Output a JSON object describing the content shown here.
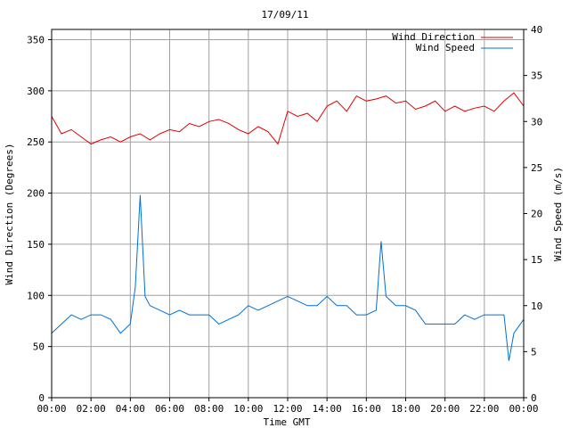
{
  "chart_data": {
    "type": "line",
    "title": "17/09/11",
    "xlabel": "Time GMT",
    "ylabel_left": "Wind Direction (Degrees)",
    "ylabel_right": "Wind Speed (m/s)",
    "x_ticks": [
      "00:00",
      "02:00",
      "04:00",
      "06:00",
      "08:00",
      "10:00",
      "12:00",
      "14:00",
      "16:00",
      "18:00",
      "20:00",
      "22:00",
      "00:00"
    ],
    "x_range_hours": [
      0,
      24
    ],
    "y_left_range": [
      0,
      360
    ],
    "y_left_ticks": [
      0,
      50,
      100,
      150,
      200,
      250,
      300,
      350
    ],
    "y_right_range": [
      0,
      40
    ],
    "y_right_ticks": [
      0,
      5,
      10,
      15,
      20,
      25,
      30,
      35,
      40
    ],
    "grid": true,
    "legend_position": "top-right",
    "colors": {
      "direction": "#e00000",
      "speed": "#0070d0"
    },
    "series": [
      {
        "name": "Wind Direction",
        "axis": "left",
        "x": [
          0,
          0.5,
          1,
          1.5,
          2,
          2.5,
          3,
          3.5,
          4,
          4.5,
          5,
          5.5,
          6,
          6.5,
          7,
          7.5,
          8,
          8.5,
          9,
          9.5,
          10,
          10.5,
          11,
          11.5,
          12,
          12.5,
          13,
          13.5,
          14,
          14.5,
          15,
          15.5,
          16,
          16.5,
          17,
          17.5,
          18,
          18.5,
          19,
          19.5,
          20,
          20.5,
          21,
          21.5,
          22,
          22.5,
          23,
          23.5,
          24
        ],
        "values": [
          275,
          258,
          262,
          255,
          248,
          252,
          255,
          250,
          255,
          258,
          252,
          258,
          262,
          260,
          268,
          265,
          270,
          272,
          268,
          262,
          258,
          265,
          260,
          248,
          280,
          275,
          278,
          270,
          285,
          290,
          280,
          295,
          290,
          292,
          295,
          288,
          290,
          282,
          285,
          290,
          280,
          285,
          280,
          283,
          285,
          280,
          290,
          298,
          285
        ]
      },
      {
        "name": "Wind Speed",
        "axis": "right",
        "x": [
          0,
          0.5,
          1,
          1.5,
          2,
          2.5,
          3,
          3.5,
          4,
          4.25,
          4.5,
          4.75,
          5,
          5.5,
          6,
          6.5,
          7,
          7.5,
          8,
          8.5,
          9,
          9.5,
          10,
          10.5,
          11,
          11.5,
          12,
          12.5,
          13,
          13.5,
          14,
          14.5,
          15,
          15.5,
          16,
          16.5,
          16.75,
          17,
          17.5,
          18,
          18.5,
          19,
          19.5,
          20,
          20.5,
          21,
          21.5,
          22,
          22.5,
          23,
          23.25,
          23.5,
          24
        ],
        "values": [
          7,
          8,
          9,
          8.5,
          9,
          9,
          8.5,
          7,
          8,
          12,
          22,
          11,
          10,
          9.5,
          9,
          9.5,
          9,
          9,
          9,
          8,
          8.5,
          9,
          10,
          9.5,
          10,
          10.5,
          11,
          10.5,
          10,
          10,
          11,
          10,
          10,
          9,
          9,
          9.5,
          17,
          11,
          10,
          10,
          9.5,
          8,
          8,
          8,
          8,
          9,
          8.5,
          9,
          9,
          9,
          4,
          7,
          8.5
        ]
      }
    ]
  }
}
